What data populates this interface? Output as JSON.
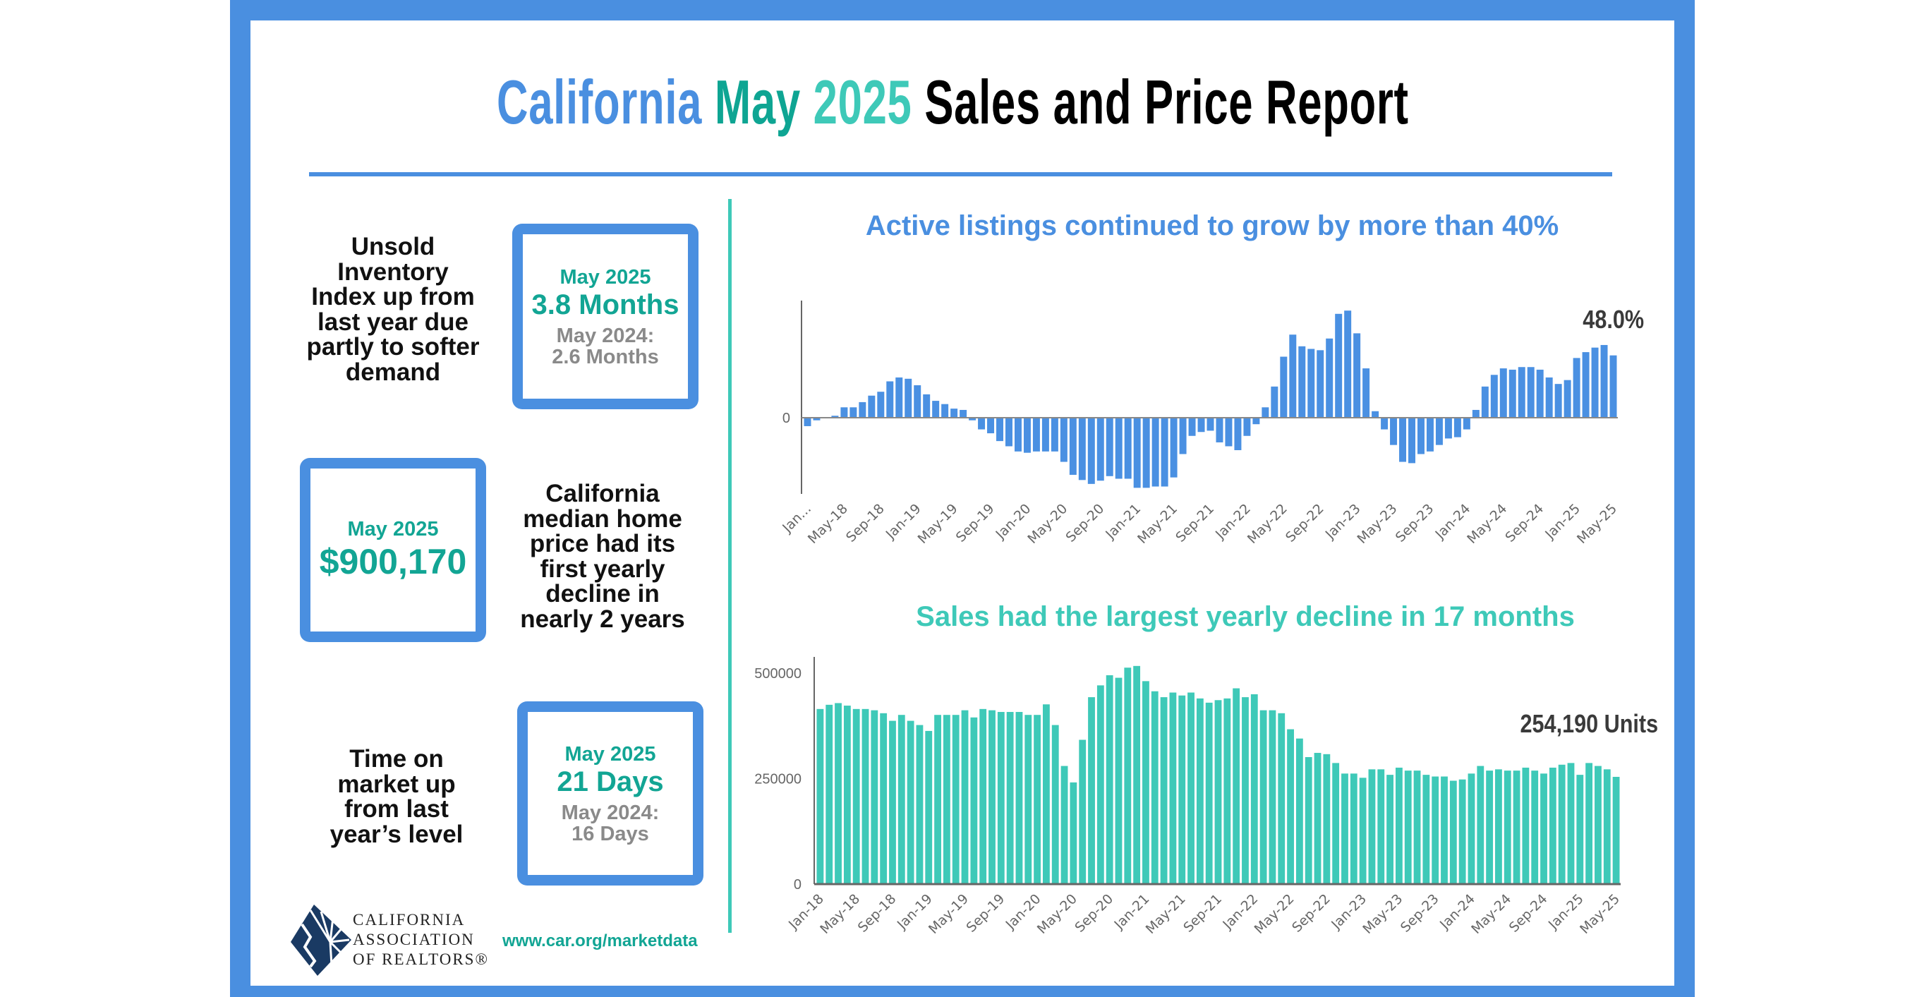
{
  "header": {
    "title_parts": [
      {
        "text": "California ",
        "color": "#4a8fe0"
      },
      {
        "text": "May ",
        "color": "#0ea593"
      },
      {
        "text": "2025 ",
        "color": "#3ec9b8"
      },
      {
        "text": "Sales and Price Report",
        "color": "#000000"
      }
    ]
  },
  "colors": {
    "frame": "#4a8fe0",
    "teal_dark": "#12a594",
    "teal_light": "#3ec9b8",
    "listings_bar": "#4a90e2",
    "sales_bar": "#3ec9b8"
  },
  "stats": [
    {
      "description": [
        "Unsold",
        "Inventory",
        "Index up from",
        "last year due",
        "partly to softer",
        "demand"
      ],
      "label": "May 2025",
      "value": "3.8 Months",
      "prev_label": "May 2024:",
      "prev_value": "2.6 Months"
    },
    {
      "description": [
        "California",
        "median home",
        "price had its",
        "first yearly",
        "decline in",
        "nearly 2 years"
      ],
      "label": "May 2025",
      "value": "$900,170"
    },
    {
      "description": [
        "Time on",
        "market up",
        "from last",
        "year’s level"
      ],
      "label": "May 2025",
      "value": "21 Days",
      "prev_label": "May 2024:",
      "prev_value": "16 Days"
    }
  ],
  "footer": {
    "logo_lines": [
      "CALIFORNIA",
      "ASSOCIATION",
      "OF REALTORS®"
    ],
    "url": "www.car.org/marketdata"
  },
  "chart_data": [
    {
      "type": "bar",
      "title": "Active listings continued to grow by more than 40%",
      "annotation": "48.0%",
      "x_start": "Jan-18",
      "x_end": "May-25",
      "frequency": "monthly",
      "tick_labels": [
        "Jan...",
        "May-18",
        "Sep-18",
        "Jan-19",
        "May-19",
        "Sep-19",
        "Jan-20",
        "May-20",
        "Sep-20",
        "Jan-21",
        "May-21",
        "Sep-21",
        "Jan-22",
        "May-22",
        "Sep-22",
        "Jan-23",
        "May-23",
        "Sep-23",
        "Jan-24",
        "May-24",
        "Sep-24",
        "Jan-25",
        "May-25"
      ],
      "y_tick_labels": [
        "0"
      ],
      "unit": "%",
      "values": [
        -6.5,
        -2,
        0,
        1.5,
        8,
        8,
        12,
        17,
        20,
        28,
        31,
        30,
        25,
        18,
        13,
        10.5,
        7,
        6,
        -2,
        -9,
        -12,
        -18,
        -22,
        -26,
        -27,
        -26,
        -26,
        -26,
        -34,
        -44,
        -48,
        -51,
        -48.5,
        -45,
        -47,
        -47,
        -54,
        -54,
        -53,
        -53,
        -46,
        -28,
        -14,
        -11,
        -10,
        -19,
        -22,
        -25,
        -14,
        -5,
        8,
        24,
        47,
        64,
        55,
        53,
        52,
        61,
        80,
        82.5,
        65,
        38,
        5,
        -9,
        -21,
        -34,
        -35,
        -28,
        -26,
        -21,
        -16,
        -15,
        -9,
        6,
        24,
        33,
        38,
        37,
        39,
        39,
        37,
        31,
        26,
        29,
        46,
        50.5,
        54,
        56,
        48
      ],
      "grid": false
    },
    {
      "type": "bar",
      "title": "Sales had the largest yearly decline in 17 months",
      "annotation": "254,190 Units",
      "x_start": "Jan-18",
      "x_end": "May-25",
      "frequency": "monthly",
      "tick_labels": [
        "Jan-18",
        "May-18",
        "Sep-18",
        "Jan-19",
        "May-19",
        "Sep-19",
        "Jan-20",
        "May-20",
        "Sep-20",
        "Jan-21",
        "May-21",
        "Sep-21",
        "Jan-22",
        "May-22",
        "Sep-22",
        "Jan-23",
        "May-23",
        "Sep-23",
        "Jan-24",
        "May-24",
        "Sep-24",
        "Jan-25",
        "May-25"
      ],
      "y_tick_labels": [
        "500000",
        "250000",
        "0"
      ],
      "y_ticks": [
        500000,
        250000,
        0
      ],
      "ylim": [
        0,
        540000
      ],
      "values": [
        415000,
        425000,
        429000,
        423000,
        415000,
        415000,
        412000,
        405000,
        387000,
        401000,
        387000,
        377000,
        363000,
        401000,
        401000,
        401000,
        412000,
        395000,
        415000,
        412000,
        408000,
        408000,
        408000,
        401000,
        401000,
        426000,
        377000,
        280000,
        241000,
        342000,
        443000,
        471000,
        495000,
        489000,
        513000,
        517000,
        481000,
        457000,
        443000,
        454000,
        447000,
        454000,
        440000,
        430000,
        436000,
        440000,
        464000,
        443000,
        450000,
        412000,
        412000,
        405000,
        367000,
        345000,
        301000,
        311000,
        308000,
        287000,
        262000,
        262000,
        252000,
        272000,
        272000,
        259000,
        276000,
        269000,
        269000,
        259000,
        255000,
        255000,
        245000,
        248000,
        262000,
        280000,
        269000,
        272000,
        269000,
        269000,
        276000,
        269000,
        262000,
        276000,
        283000,
        287000,
        259000,
        287000,
        280000,
        272000,
        254190
      ],
      "grid": false
    }
  ]
}
